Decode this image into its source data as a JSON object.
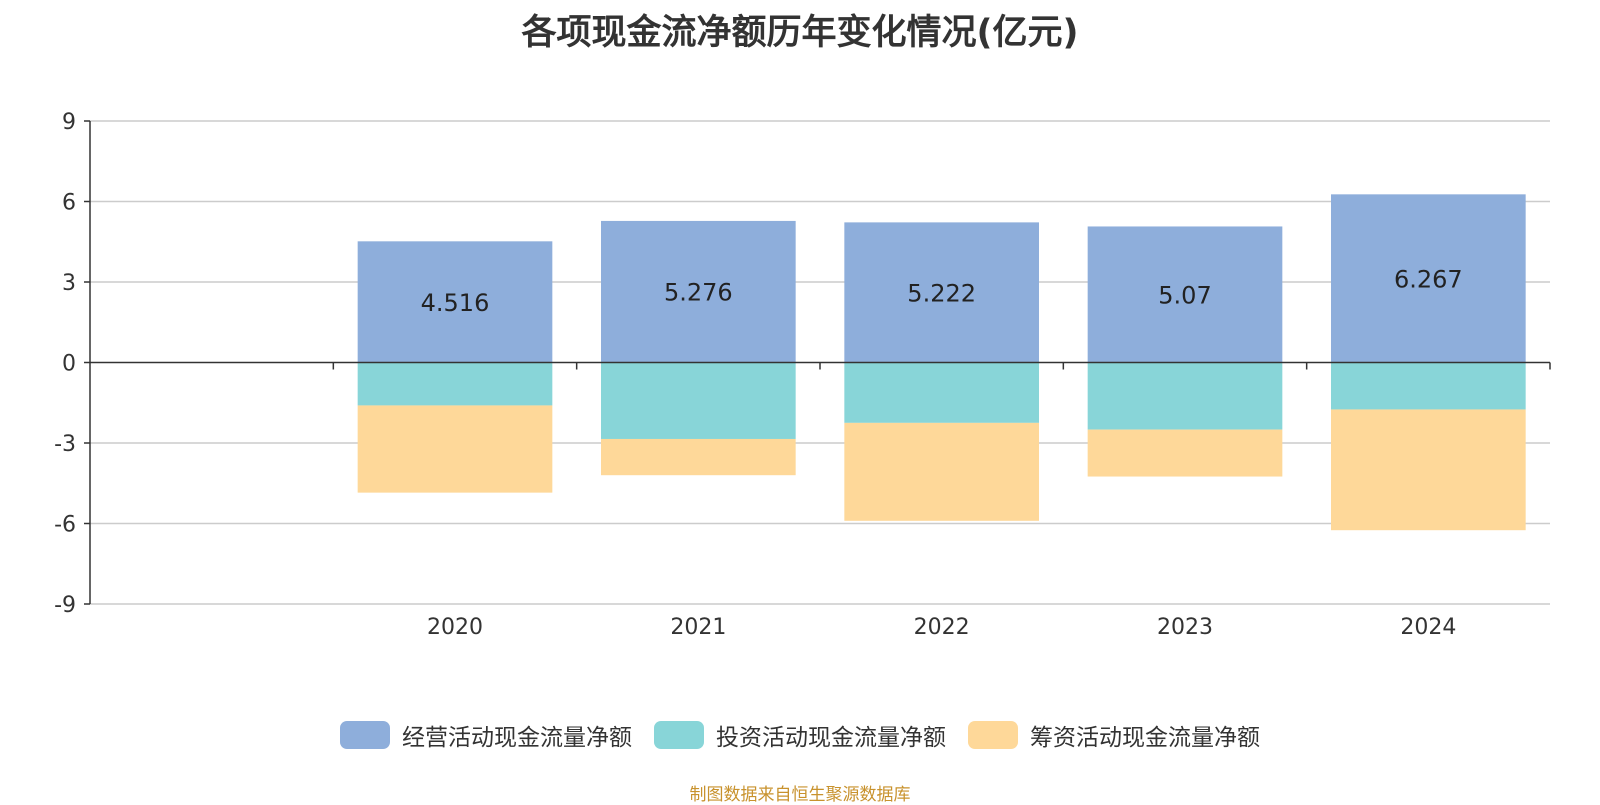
{
  "chart_data": {
    "type": "bar",
    "stacked": true,
    "title": "各项现金流净额历年变化情况(亿元)",
    "categories": [
      "2020",
      "2021",
      "2022",
      "2023",
      "2024"
    ],
    "series": [
      {
        "name": "经营活动现金流量净额",
        "color": "#8eaedb",
        "values": [
          4.516,
          5.276,
          5.222,
          5.07,
          6.267
        ],
        "labels": [
          "4.516",
          "5.276",
          "5.222",
          "5.07",
          "6.267"
        ]
      },
      {
        "name": "投资活动现金流量净额",
        "color": "#88d5d8",
        "values": [
          -1.6,
          -2.85,
          -2.25,
          -2.5,
          -1.75
        ]
      },
      {
        "name": "筹资活动现金流量净额",
        "color": "#fed899",
        "values": [
          -3.25,
          -1.35,
          -3.65,
          -1.75,
          -4.5
        ]
      }
    ],
    "ylim": [
      -9,
      9
    ],
    "yticks": [
      9,
      6,
      3,
      0,
      -3,
      -6,
      -9
    ],
    "xlim": [
      2019,
      2024
    ],
    "grid": true,
    "legend_position": "bottom",
    "source": "制图数据来自恒生聚源数据库"
  }
}
